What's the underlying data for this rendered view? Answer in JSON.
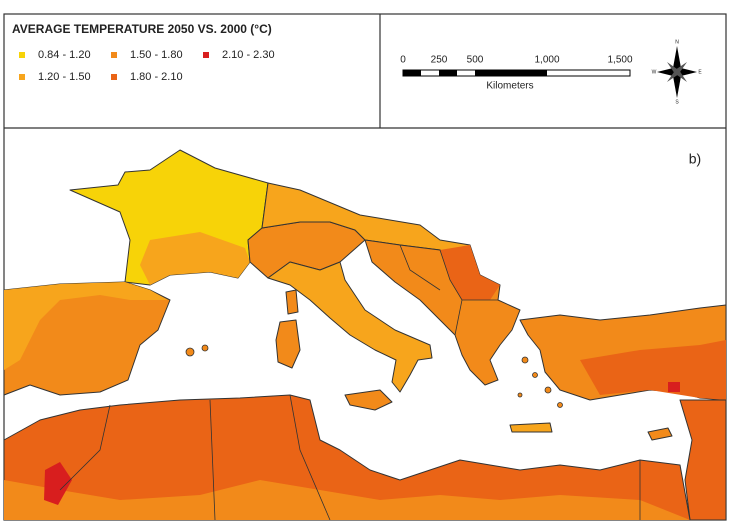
{
  "legend": {
    "title": "AVERAGE TEMPERATURE 2050 VS. 2000 (°C)",
    "items": [
      {
        "label": "0.84 - 1.20",
        "color": "#f7d308"
      },
      {
        "label": "1.20 - 1.50",
        "color": "#f7a51c"
      },
      {
        "label": "1.50 - 1.80",
        "color": "#f28a1a"
      },
      {
        "label": "1.80 - 2.10",
        "color": "#ea6416"
      },
      {
        "label": "2.10 - 2.30",
        "color": "#d81e1e"
      }
    ]
  },
  "scale_bar": {
    "ticks": [
      "0",
      "250",
      "500",
      "1,000",
      "1,500"
    ],
    "unit": "Kilometers"
  },
  "compass": {
    "north": "N",
    "south": "S",
    "east": "E",
    "west": "W"
  },
  "panel_label": "b)"
}
